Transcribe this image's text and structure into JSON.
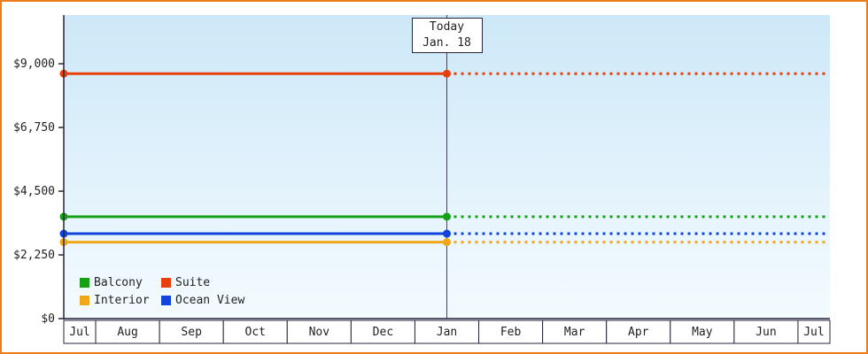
{
  "chart_data": {
    "type": "line",
    "title": "",
    "xlabel": "",
    "ylabel": "",
    "grid": false,
    "x_categories": [
      "Jul",
      "Aug",
      "Sep",
      "Oct",
      "Nov",
      "Dec",
      "Jan",
      "Feb",
      "Mar",
      "Apr",
      "May",
      "Jun",
      "Jul"
    ],
    "y_ticks": [
      {
        "label": "$0",
        "value": 0
      },
      {
        "label": "$2,250",
        "value": 2250
      },
      {
        "label": "$4,500",
        "value": 4500
      },
      {
        "label": "$6,750",
        "value": 6750
      },
      {
        "label": "$9,000",
        "value": 9000
      }
    ],
    "ylim": [
      0,
      10720
    ],
    "today": {
      "category_index": 6,
      "label": "Today",
      "date": "Jan. 18"
    },
    "series": [
      {
        "name": "Suite",
        "color": "#e8400c",
        "value": 8650,
        "solid_until_index": 6,
        "style_after_today": "dashed"
      },
      {
        "name": "Balcony",
        "color": "#16a016",
        "value": 3600,
        "solid_until_index": 6,
        "style_after_today": "dashed"
      },
      {
        "name": "Ocean View",
        "color": "#1144dd",
        "value": 3000,
        "solid_until_index": 6,
        "style_after_today": "dashed"
      },
      {
        "name": "Interior",
        "color": "#f0a818",
        "value": 2700,
        "solid_until_index": 6,
        "style_after_today": "dashed"
      }
    ],
    "legend": [
      {
        "name": "Balcony",
        "color": "#16a016"
      },
      {
        "name": "Suite",
        "color": "#e8400c"
      },
      {
        "name": "Interior",
        "color": "#f0a818"
      },
      {
        "name": "Ocean View",
        "color": "#1144dd"
      }
    ],
    "legend_position": "bottom-left"
  },
  "colors": {
    "plot_bg_top": "#cde8f8",
    "plot_bg_bottom": "#f4fbff",
    "axis": "#24243c",
    "text": "#222222",
    "frame_border": "#ec7d18",
    "today_line": "#40405c",
    "cell_bg": "#ffffff"
  }
}
